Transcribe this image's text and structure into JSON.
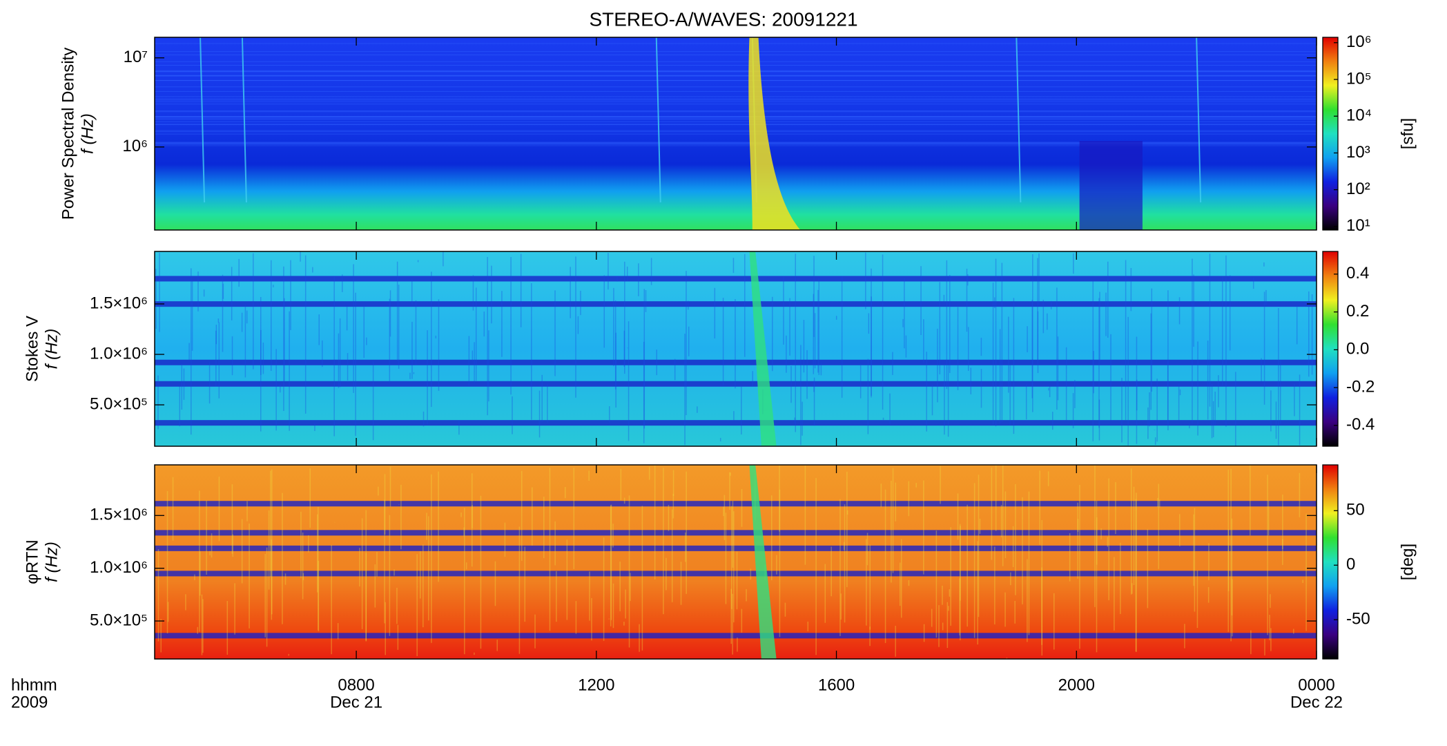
{
  "chart_data": [
    {
      "type": "spectrogram",
      "title": "STEREO-A/WAVES: 20091221",
      "ylabel": "Power Spectral Density",
      "ylabel2": "f (Hz)",
      "ylog": true,
      "ylim": [
        117000,
        17000000
      ],
      "yticks": [
        {
          "value": 1000000,
          "label": "10⁶"
        },
        {
          "value": 10000000,
          "label": "10⁷"
        }
      ],
      "clog": true,
      "clim": [
        8,
        1400000
      ],
      "clabel": "[sfu]",
      "cticks": [
        {
          "value": 10,
          "label": "10¹"
        },
        {
          "value": 100,
          "label": "10²"
        },
        {
          "value": 1000,
          "label": "10³"
        },
        {
          "value": 10000,
          "label": "10⁴"
        },
        {
          "value": 100000,
          "label": "10⁵"
        },
        {
          "value": 1000000,
          "label": "10⁶"
        }
      ],
      "colorscale": [
        "#000000",
        "#3a0080",
        "#1020e0",
        "#10a0f0",
        "#20e0c0",
        "#30e030",
        "#f0f020",
        "#f08010",
        "#e00000"
      ]
    },
    {
      "type": "spectrogram",
      "ylabel": "Stokes V",
      "ylabel2": "f (Hz)",
      "ylog": false,
      "ylim": [
        90000,
        2020000
      ],
      "yticks": [
        {
          "value": 500000,
          "label": "5.0×10⁵"
        },
        {
          "value": 1000000,
          "label": "1.0×10⁶"
        },
        {
          "value": 1500000,
          "label": "1.5×10⁶"
        }
      ],
      "clog": false,
      "clim": [
        -0.51,
        0.52
      ],
      "cticks": [
        -0.4,
        -0.2,
        {
          "value": 0,
          "label": "0.0"
        },
        0.2,
        0.4
      ],
      "colorscale": [
        "#000000",
        "#3a0080",
        "#1020e0",
        "#10a0f0",
        "#20e0c0",
        "#30e030",
        "#f0f020",
        "#f08010",
        "#e00000"
      ]
    },
    {
      "type": "spectrogram",
      "ylabel": "φRTN",
      "ylabel2": "f (Hz)",
      "ylog": false,
      "ylim": [
        140000,
        1980000
      ],
      "yticks": [
        {
          "value": 500000,
          "label": "5.0×10⁵"
        },
        {
          "value": 1000000,
          "label": "1.0×10⁶"
        },
        {
          "value": 1500000,
          "label": "1.5×10⁶"
        }
      ],
      "clog": false,
      "clim": [
        -86,
        92
      ],
      "clabel": "[deg]",
      "cticks": [
        -50,
        0,
        50
      ],
      "colorscale": [
        "#000000",
        "#3a0080",
        "#1020e0",
        "#10a0f0",
        "#20e0c0",
        "#30e030",
        "#f0f020",
        "#f08010",
        "#e00000"
      ],
      "xlabel": "hhmm",
      "xlabel2": "2009",
      "xlim": [
        4.64,
        24
      ],
      "xticks": [
        {
          "value": 8,
          "label": "0800"
        },
        {
          "value": 12,
          "label": "1200"
        },
        {
          "value": 16,
          "label": "1600"
        },
        {
          "value": 20,
          "label": "2000"
        },
        {
          "value": 24,
          "label": "0000"
        }
      ],
      "xdates": [
        {
          "value": 8,
          "label": "Dec 21"
        },
        {
          "value": 24,
          "label": "Dec 22"
        }
      ]
    }
  ]
}
